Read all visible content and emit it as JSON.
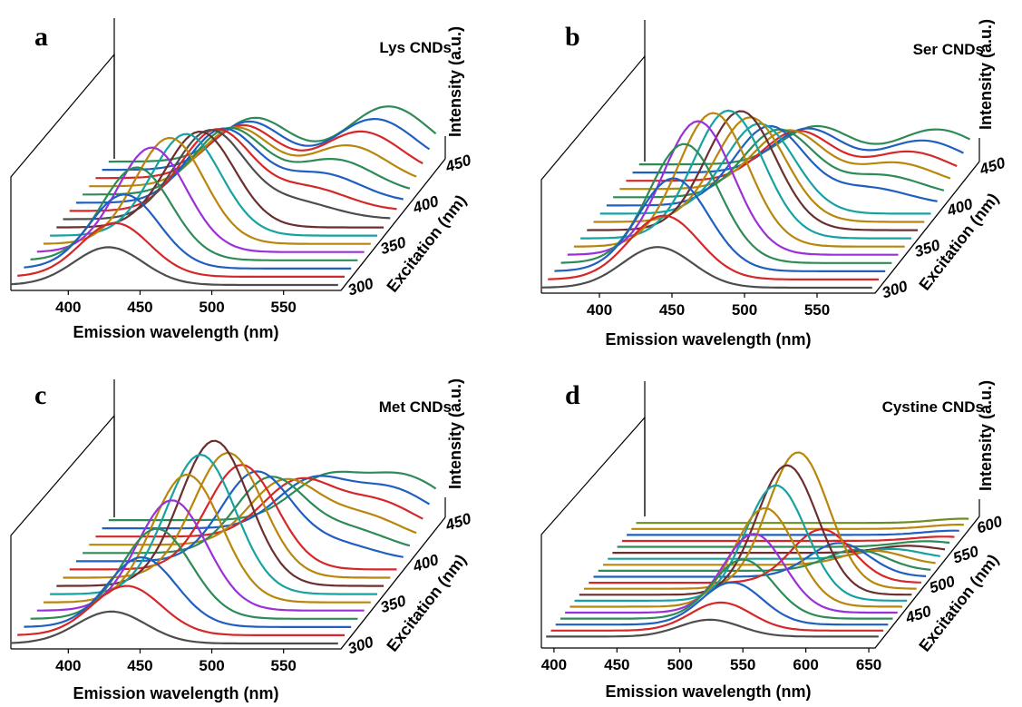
{
  "chart_data": [
    {
      "panel": "a",
      "type": "line",
      "title": "Lys CNDs",
      "xlabel": "Emission wavelength (nm)",
      "ylabel": "Intensity (a.u.)",
      "zlabel": "Excitation (nm)",
      "xticks": [
        "400",
        "450",
        "500",
        "550"
      ],
      "zticks": [
        "300",
        "350",
        "400",
        "450"
      ],
      "xlim": [
        360,
        590
      ],
      "zlim": [
        300,
        460
      ],
      "series": [
        {
          "excitation": 300,
          "color": "#4d4d4d",
          "peak_x": 428,
          "peak_y": 26,
          "shoulder_x": 0,
          "shoulder_y": 0
        },
        {
          "excitation": 310,
          "color": "#d62728",
          "peak_x": 428,
          "peak_y": 37,
          "shoulder_x": 0,
          "shoulder_y": 0
        },
        {
          "excitation": 320,
          "color": "#1f5fbf",
          "peak_x": 430,
          "peak_y": 51,
          "shoulder_x": 0,
          "shoulder_y": 0
        },
        {
          "excitation": 330,
          "color": "#2e8b57",
          "peak_x": 434,
          "peak_y": 64,
          "shoulder_x": 0,
          "shoulder_y": 0
        },
        {
          "excitation": 340,
          "color": "#9b30d9",
          "peak_x": 440,
          "peak_y": 72,
          "shoulder_x": 0,
          "shoulder_y": 0
        },
        {
          "excitation": 350,
          "color": "#b8860b",
          "peak_x": 448,
          "peak_y": 73,
          "shoulder_x": 0,
          "shoulder_y": 0
        },
        {
          "excitation": 360,
          "color": "#17a2a2",
          "peak_x": 455,
          "peak_y": 70,
          "shoulder_x": 0,
          "shoulder_y": 0
        },
        {
          "excitation": 370,
          "color": "#6b2f2f",
          "peak_x": 460,
          "peak_y": 66,
          "shoulder_x": 0,
          "shoulder_y": 0
        },
        {
          "excitation": 380,
          "color": "#4d4d4d",
          "peak_x": 462,
          "peak_y": 60,
          "shoulder_x": 520,
          "shoulder_y": 12
        },
        {
          "excitation": 390,
          "color": "#d62728",
          "peak_x": 462,
          "peak_y": 55,
          "shoulder_x": 525,
          "shoulder_y": 16
        },
        {
          "excitation": 400,
          "color": "#1f5fbf",
          "peak_x": 462,
          "peak_y": 50,
          "shoulder_x": 530,
          "shoulder_y": 20
        },
        {
          "excitation": 410,
          "color": "#2e8b57",
          "peak_x": 462,
          "peak_y": 45,
          "shoulder_x": 535,
          "shoulder_y": 24
        },
        {
          "excitation": 420,
          "color": "#b8860b",
          "peak_x": 462,
          "peak_y": 40,
          "shoulder_x": 540,
          "shoulder_y": 28
        },
        {
          "excitation": 430,
          "color": "#d62728",
          "peak_x": 462,
          "peak_y": 36,
          "shoulder_x": 545,
          "shoulder_y": 32
        },
        {
          "excitation": 440,
          "color": "#1f5fbf",
          "peak_x": 462,
          "peak_y": 33,
          "shoulder_x": 550,
          "shoulder_y": 35
        },
        {
          "excitation": 450,
          "color": "#2e8b57",
          "peak_x": 462,
          "peak_y": 30,
          "shoulder_x": 555,
          "shoulder_y": 38
        }
      ]
    },
    {
      "panel": "b",
      "type": "line",
      "title": "Ser CNDs",
      "xlabel": "Emission wavelength (nm)",
      "ylabel": "Intensity (a.u.)",
      "zlabel": "Excitation (nm)",
      "xticks": [
        "400",
        "450",
        "500",
        "550"
      ],
      "zticks": [
        "300",
        "350",
        "400",
        "450"
      ],
      "xlim": [
        360,
        590
      ],
      "zlim": [
        300,
        460
      ],
      "series": [
        {
          "excitation": 300,
          "color": "#4d4d4d",
          "peak_x": 440,
          "peak_y": 28,
          "shoulder_x": 0,
          "shoulder_y": 0
        },
        {
          "excitation": 310,
          "color": "#d62728",
          "peak_x": 440,
          "peak_y": 44,
          "shoulder_x": 0,
          "shoulder_y": 0
        },
        {
          "excitation": 320,
          "color": "#1f5fbf",
          "peak_x": 442,
          "peak_y": 64,
          "shoulder_x": 0,
          "shoulder_y": 0
        },
        {
          "excitation": 330,
          "color": "#2e8b57",
          "peak_x": 445,
          "peak_y": 82,
          "shoulder_x": 0,
          "shoulder_y": 0
        },
        {
          "excitation": 340,
          "color": "#9b30d9",
          "peak_x": 450,
          "peak_y": 92,
          "shoulder_x": 0,
          "shoulder_y": 0
        },
        {
          "excitation": 350,
          "color": "#b8860b",
          "peak_x": 456,
          "peak_y": 92,
          "shoulder_x": 0,
          "shoulder_y": 0
        },
        {
          "excitation": 360,
          "color": "#17a2a2",
          "peak_x": 462,
          "peak_y": 88,
          "shoulder_x": 0,
          "shoulder_y": 0
        },
        {
          "excitation": 370,
          "color": "#6b2f2f",
          "peak_x": 466,
          "peak_y": 82,
          "shoulder_x": 0,
          "shoulder_y": 0
        },
        {
          "excitation": 380,
          "color": "#b8860b",
          "peak_x": 468,
          "peak_y": 72,
          "shoulder_x": 0,
          "shoulder_y": 0
        },
        {
          "excitation": 390,
          "color": "#17a2a2",
          "peak_x": 470,
          "peak_y": 62,
          "shoulder_x": 0,
          "shoulder_y": 0
        },
        {
          "excitation": 400,
          "color": "#1f5fbf",
          "peak_x": 472,
          "peak_y": 54,
          "shoulder_x": 540,
          "shoulder_y": 12
        },
        {
          "excitation": 410,
          "color": "#2e8b57",
          "peak_x": 474,
          "peak_y": 46,
          "shoulder_x": 545,
          "shoulder_y": 15
        },
        {
          "excitation": 420,
          "color": "#b8860b",
          "peak_x": 476,
          "peak_y": 40,
          "shoulder_x": 550,
          "shoulder_y": 18
        },
        {
          "excitation": 430,
          "color": "#d62728",
          "peak_x": 478,
          "peak_y": 34,
          "shoulder_x": 555,
          "shoulder_y": 20
        },
        {
          "excitation": 440,
          "color": "#1f5fbf",
          "peak_x": 480,
          "peak_y": 30,
          "shoulder_x": 560,
          "shoulder_y": 22
        },
        {
          "excitation": 450,
          "color": "#2e8b57",
          "peak_x": 482,
          "peak_y": 26,
          "shoulder_x": 565,
          "shoulder_y": 24
        }
      ]
    },
    {
      "panel": "c",
      "type": "line",
      "title": "Met CNDs",
      "xlabel": "Emission wavelength (nm)",
      "ylabel": "Intensity (a.u.)",
      "zlabel": "Excitation (nm)",
      "xticks": [
        "400",
        "450",
        "500",
        "550"
      ],
      "zticks": [
        "300",
        "350",
        "400",
        "450"
      ],
      "xlim": [
        360,
        590
      ],
      "zlim": [
        300,
        460
      ],
      "series": [
        {
          "excitation": 300,
          "color": "#4d4d4d",
          "peak_x": 430,
          "peak_y": 22,
          "shoulder_x": 0,
          "shoulder_y": 0
        },
        {
          "excitation": 310,
          "color": "#d62728",
          "peak_x": 436,
          "peak_y": 34,
          "shoulder_x": 0,
          "shoulder_y": 0
        },
        {
          "excitation": 320,
          "color": "#1f5fbf",
          "peak_x": 442,
          "peak_y": 48,
          "shoulder_x": 0,
          "shoulder_y": 0
        },
        {
          "excitation": 330,
          "color": "#2e8b57",
          "peak_x": 448,
          "peak_y": 62,
          "shoulder_x": 0,
          "shoulder_y": 0
        },
        {
          "excitation": 340,
          "color": "#9b30d9",
          "peak_x": 454,
          "peak_y": 76,
          "shoulder_x": 0,
          "shoulder_y": 0
        },
        {
          "excitation": 350,
          "color": "#b8860b",
          "peak_x": 460,
          "peak_y": 88,
          "shoulder_x": 0,
          "shoulder_y": 0
        },
        {
          "excitation": 360,
          "color": "#17a2a2",
          "peak_x": 465,
          "peak_y": 96,
          "shoulder_x": 0,
          "shoulder_y": 0
        },
        {
          "excitation": 370,
          "color": "#6b2f2f",
          "peak_x": 470,
          "peak_y": 100,
          "shoulder_x": 0,
          "shoulder_y": 0
        },
        {
          "excitation": 380,
          "color": "#b8860b",
          "peak_x": 475,
          "peak_y": 86,
          "shoulder_x": 0,
          "shoulder_y": 0
        },
        {
          "excitation": 390,
          "color": "#d62728",
          "peak_x": 480,
          "peak_y": 72,
          "shoulder_x": 0,
          "shoulder_y": 0
        },
        {
          "excitation": 400,
          "color": "#1f5fbf",
          "peak_x": 485,
          "peak_y": 60,
          "shoulder_x": 540,
          "shoulder_y": 12
        },
        {
          "excitation": 410,
          "color": "#2e8b57",
          "peak_x": 490,
          "peak_y": 50,
          "shoulder_x": 545,
          "shoulder_y": 16
        },
        {
          "excitation": 420,
          "color": "#b8860b",
          "peak_x": 495,
          "peak_y": 42,
          "shoulder_x": 550,
          "shoulder_y": 20
        },
        {
          "excitation": 430,
          "color": "#d62728",
          "peak_x": 500,
          "peak_y": 36,
          "shoulder_x": 555,
          "shoulder_y": 24
        },
        {
          "excitation": 440,
          "color": "#1f5fbf",
          "peak_x": 505,
          "peak_y": 31,
          "shoulder_x": 560,
          "shoulder_y": 27
        },
        {
          "excitation": 450,
          "color": "#2e8b57",
          "peak_x": 510,
          "peak_y": 27,
          "shoulder_x": 565,
          "shoulder_y": 30
        }
      ]
    },
    {
      "panel": "d",
      "type": "line",
      "title": "Cystine CNDs",
      "xlabel": "Emission wavelength (nm)",
      "ylabel": "Intensity (a.u.)",
      "zlabel": "Excitation (nm)",
      "xticks": [
        "400",
        "450",
        "500",
        "550",
        "600",
        "650"
      ],
      "zticks": [
        "450",
        "500",
        "550",
        "600"
      ],
      "xlim": [
        390,
        655
      ],
      "zlim": [
        400,
        620
      ],
      "series": [
        {
          "excitation": 410,
          "color": "#4d4d4d",
          "peak_x": 520,
          "peak_y": 12,
          "shoulder_x": 0,
          "shoulder_y": 0
        },
        {
          "excitation": 420,
          "color": "#d62728",
          "peak_x": 525,
          "peak_y": 20,
          "shoulder_x": 0,
          "shoulder_y": 0
        },
        {
          "excitation": 430,
          "color": "#1f5fbf",
          "peak_x": 530,
          "peak_y": 30,
          "shoulder_x": 0,
          "shoulder_y": 0
        },
        {
          "excitation": 440,
          "color": "#2e8b57",
          "peak_x": 535,
          "peak_y": 42,
          "shoulder_x": 0,
          "shoulder_y": 0
        },
        {
          "excitation": 450,
          "color": "#9b30d9",
          "peak_x": 540,
          "peak_y": 56,
          "shoulder_x": 0,
          "shoulder_y": 0
        },
        {
          "excitation": 460,
          "color": "#b8860b",
          "peak_x": 545,
          "peak_y": 70,
          "shoulder_x": 0,
          "shoulder_y": 0
        },
        {
          "excitation": 470,
          "color": "#17a2a2",
          "peak_x": 550,
          "peak_y": 82,
          "shoulder_x": 0,
          "shoulder_y": 0
        },
        {
          "excitation": 480,
          "color": "#6b2f2f",
          "peak_x": 555,
          "peak_y": 92,
          "shoulder_x": 0,
          "shoulder_y": 0
        },
        {
          "excitation": 490,
          "color": "#b8860b",
          "peak_x": 560,
          "peak_y": 97,
          "shoulder_x": 0,
          "shoulder_y": 0
        },
        {
          "excitation": 500,
          "color": "#d62728",
          "peak_x": 575,
          "peak_y": 38,
          "shoulder_x": 0,
          "shoulder_y": 0
        },
        {
          "excitation": 510,
          "color": "#1f5fbf",
          "peak_x": 585,
          "peak_y": 24,
          "shoulder_x": 0,
          "shoulder_y": 0
        },
        {
          "excitation": 520,
          "color": "#2e8b57",
          "peak_x": 595,
          "peak_y": 15,
          "shoulder_x": 0,
          "shoulder_y": 0
        },
        {
          "excitation": 530,
          "color": "#b8860b",
          "peak_x": 605,
          "peak_y": 10,
          "shoulder_x": 0,
          "shoulder_y": 0
        },
        {
          "excitation": 540,
          "color": "#17a2a2",
          "peak_x": 615,
          "peak_y": 7,
          "shoulder_x": 0,
          "shoulder_y": 0
        },
        {
          "excitation": 550,
          "color": "#6b2f2f",
          "peak_x": 625,
          "peak_y": 5,
          "shoulder_x": 0,
          "shoulder_y": 0
        },
        {
          "excitation": 560,
          "color": "#2e8b57",
          "peak_x": 635,
          "peak_y": 4,
          "shoulder_x": 0,
          "shoulder_y": 0
        },
        {
          "excitation": 570,
          "color": "#d62728",
          "peak_x": 645,
          "peak_y": 3,
          "shoulder_x": 0,
          "shoulder_y": 0
        },
        {
          "excitation": 580,
          "color": "#1f5fbf",
          "peak_x": 650,
          "peak_y": 3,
          "shoulder_x": 0,
          "shoulder_y": 0
        },
        {
          "excitation": 590,
          "color": "#b8860b",
          "peak_x": 650,
          "peak_y": 3,
          "shoulder_x": 0,
          "shoulder_y": 0
        },
        {
          "excitation": 600,
          "color": "#6b8e23",
          "peak_x": 650,
          "peak_y": 3,
          "shoulder_x": 0,
          "shoulder_y": 0
        }
      ]
    }
  ]
}
